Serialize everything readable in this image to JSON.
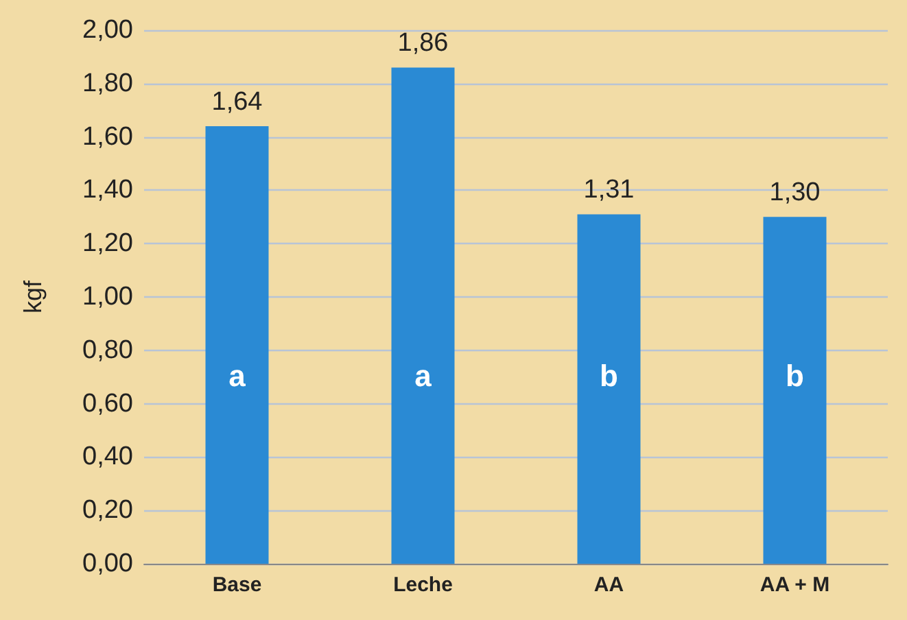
{
  "chart_data": {
    "type": "bar",
    "ylabel": "kgf",
    "categories": [
      "Base",
      "Leche",
      "AA",
      "AA + M"
    ],
    "values": [
      1.64,
      1.86,
      1.31,
      1.3
    ],
    "value_labels": [
      "1,64",
      "1,86",
      "1,31",
      "1,30"
    ],
    "color": "#2a8ad4",
    "ylim": [
      0,
      2
    ],
    "yticks": [
      {
        "value": 0,
        "label": "0,00"
      },
      {
        "value": 0.2,
        "label": "0,20"
      },
      {
        "value": 0.4,
        "label": "0,40"
      },
      {
        "value": 0.6,
        "label": "0,60"
      },
      {
        "value": 0.8,
        "label": "0,80"
      },
      {
        "value": 1,
        "label": "1,00"
      },
      {
        "value": 1.2,
        "label": "1,20"
      },
      {
        "value": 1.4,
        "label": "1,40"
      },
      {
        "value": 1.6,
        "label": "1,60"
      },
      {
        "value": 1.8,
        "label": "1,80"
      },
      {
        "value": 2,
        "label": "2,00"
      }
    ],
    "grid": "y",
    "annotations": [
      "a",
      "a",
      "b",
      "b"
    ]
  }
}
